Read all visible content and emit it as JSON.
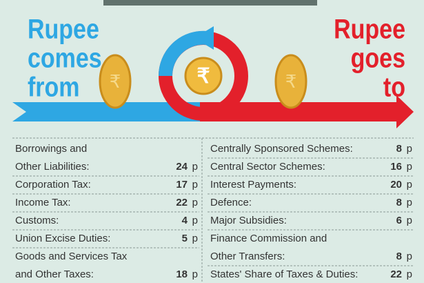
{
  "heading_left": [
    "Rupee",
    "comes",
    "from"
  ],
  "heading_right": [
    "Rupee",
    "goes",
    "to"
  ],
  "symbol": "₹",
  "unit": "p",
  "left": {
    "rows": [
      {
        "label": [
          "Borrowings and",
          "Other Liabilities:"
        ],
        "value": 24
      },
      {
        "label": [
          "Corporation Tax:"
        ],
        "value": 17
      },
      {
        "label": [
          "Income Tax:"
        ],
        "value": 22
      },
      {
        "label": [
          "Customs:"
        ],
        "value": 4
      },
      {
        "label": [
          "Union Excise Duties:"
        ],
        "value": 5
      },
      {
        "label": [
          "Goods and Services Tax",
          "and Other Taxes:"
        ],
        "value": 18
      }
    ]
  },
  "right": {
    "rows": [
      {
        "label": [
          "Centrally Sponsored Schemes:"
        ],
        "value": 8
      },
      {
        "label": [
          "Central Sector Schemes:"
        ],
        "value": 16
      },
      {
        "label": [
          "Interest Payments:"
        ],
        "value": 20
      },
      {
        "label": [
          "Defence:"
        ],
        "value": 8
      },
      {
        "label": [
          "Major Subsidies:"
        ],
        "value": 6
      },
      {
        "label": [
          "Finance Commission and",
          "Other Transfers:"
        ],
        "value": 8
      },
      {
        "label": [
          "States' Share of Taxes & Duties:"
        ],
        "value": 22
      }
    ]
  }
}
